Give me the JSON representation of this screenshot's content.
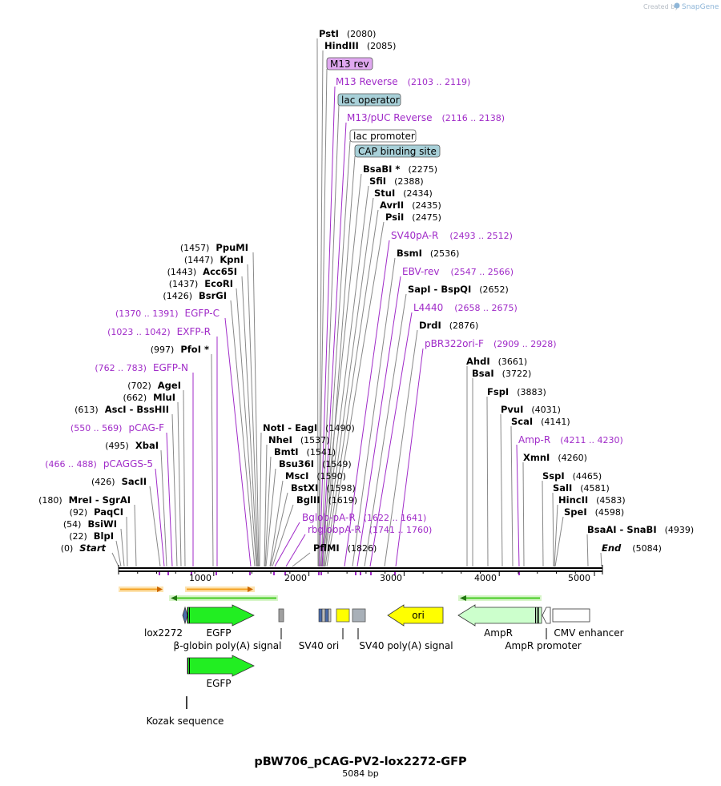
{
  "credit": {
    "prefix": "Created by",
    "brand": "SnapGene"
  },
  "title": "pBW706_pCAG-PV2-lox2272-GFP",
  "subtitle": "5084 bp",
  "total_bp": 5084,
  "ruler": {
    "ticks": [
      "1000",
      "2000",
      "3000",
      "4000",
      "5000"
    ]
  },
  "sites_top": [
    {
      "name": "PstI",
      "pos": "(2080)"
    },
    {
      "name": "HindIII",
      "pos": "(2085)"
    },
    {
      "name": "BsaBI *",
      "pos": "(2275)"
    },
    {
      "name": "SfiI",
      "pos": "(2388)"
    },
    {
      "name": "StuI",
      "pos": "(2434)"
    },
    {
      "name": "AvrII",
      "pos": "(2435)"
    },
    {
      "name": "PsiI",
      "pos": "(2475)"
    },
    {
      "name": "BsmI",
      "pos": "(2536)"
    },
    {
      "name": "SapI  -  BspQI",
      "pos": "(2652)"
    },
    {
      "name": "DrdI",
      "pos": "(2876)"
    }
  ],
  "features_top": [
    {
      "name": "M13 rev",
      "type": "badge"
    },
    {
      "name": "lac operator",
      "type": "badge"
    },
    {
      "name": "lac promoter",
      "type": "badge"
    },
    {
      "name": "CAP binding site",
      "type": "badge"
    }
  ],
  "primers_top": [
    {
      "name": "M13 Reverse",
      "pos": "(2103 .. 2119)"
    },
    {
      "name": "M13/pUC Reverse",
      "pos": "(2116 .. 2138)"
    },
    {
      "name": "SV40pA-R",
      "pos": "(2493 .. 2512)"
    },
    {
      "name": "EBV-rev",
      "pos": "(2547 .. 2566)"
    },
    {
      "name": "L4440",
      "pos": "(2658 .. 2675)"
    },
    {
      "name": "pBR322ori-F",
      "pos": "(2909 .. 2928)"
    }
  ],
  "sites_left": [
    {
      "name": "PpuMI",
      "pos": "(1457)"
    },
    {
      "name": "KpnI",
      "pos": "(1447)"
    },
    {
      "name": "Acc65I",
      "pos": "(1443)"
    },
    {
      "name": "EcoRI",
      "pos": "(1437)"
    },
    {
      "name": "BsrGI",
      "pos": "(1426)"
    },
    {
      "name": "PfoI *",
      "pos": "(997)"
    },
    {
      "name": "AgeI",
      "pos": "(702)"
    },
    {
      "name": "MluI",
      "pos": "(662)"
    },
    {
      "name": "AscI  -  BssHII",
      "pos": "(613)"
    },
    {
      "name": "XbaI",
      "pos": "(495)"
    },
    {
      "name": "SacII",
      "pos": "(426)"
    },
    {
      "name": "MreI  -  SgrAI",
      "pos": "(180)"
    },
    {
      "name": "PaqCI",
      "pos": "(92)"
    },
    {
      "name": "BsiWI",
      "pos": "(54)"
    },
    {
      "name": "BlpI",
      "pos": "(22)"
    },
    {
      "name": "Start",
      "pos": "(0)"
    }
  ],
  "primers_left": [
    {
      "name": "EGFP-C",
      "pos": "(1370 .. 1391)"
    },
    {
      "name": "EXFP-R",
      "pos": "(1023 .. 1042)"
    },
    {
      "name": "EGFP-N",
      "pos": "(762 .. 783)"
    },
    {
      "name": "pCAG-F",
      "pos": "(550 .. 569)"
    },
    {
      "name": "pCAGGS-5",
      "pos": "(466 .. 488)"
    }
  ],
  "sites_mid": [
    {
      "name": "NotI  -  EagI",
      "pos": "(1490)"
    },
    {
      "name": "NheI",
      "pos": "(1537)"
    },
    {
      "name": "BmtI",
      "pos": "(1541)"
    },
    {
      "name": "Bsu36I",
      "pos": "(1549)"
    },
    {
      "name": "MscI",
      "pos": "(1590)"
    },
    {
      "name": "BstXI",
      "pos": "(1598)"
    },
    {
      "name": "BglII",
      "pos": "(1619)"
    },
    {
      "name": "PflMI",
      "pos": "(1826)"
    }
  ],
  "primers_mid": [
    {
      "name": "Bglob-pA-R",
      "pos": "(1622 .. 1641)"
    },
    {
      "name": "rbglobpA-R",
      "pos": "(1741 .. 1760)"
    }
  ],
  "sites_right": [
    {
      "name": "AhdI",
      "pos": "(3661)"
    },
    {
      "name": "BsaI",
      "pos": "(3722)"
    },
    {
      "name": "FspI",
      "pos": "(3883)"
    },
    {
      "name": "PvuI",
      "pos": "(4031)"
    },
    {
      "name": "ScaI",
      "pos": "(4141)"
    },
    {
      "name": "XmnI",
      "pos": "(4260)"
    },
    {
      "name": "SspI",
      "pos": "(4465)"
    },
    {
      "name": "SalI",
      "pos": "(4581)"
    },
    {
      "name": "HincII",
      "pos": "(4583)"
    },
    {
      "name": "SpeI",
      "pos": "(4598)"
    },
    {
      "name": "BsaAI  -  SnaBI",
      "pos": "(4939)"
    },
    {
      "name": "End",
      "pos": "(5084)"
    }
  ],
  "primers_right": [
    {
      "name": "Amp-R",
      "pos": "(4211 .. 4230)"
    }
  ],
  "features": [
    {
      "name": "lox2272"
    },
    {
      "name": "EGFP"
    },
    {
      "name": "β-globin poly(A) signal"
    },
    {
      "name": "SV40 ori"
    },
    {
      "name": "SV40 poly(A) signal"
    },
    {
      "name": "ori"
    },
    {
      "name": "AmpR"
    },
    {
      "name": "AmpR promoter"
    },
    {
      "name": "CMV enhancer"
    },
    {
      "name": "EGFP"
    },
    {
      "name": "Kozak sequence"
    }
  ],
  "colors": {
    "primer": "#a02bc8",
    "egfp": "#22ee22",
    "ori": "#ffff00",
    "ampr": "#ccffcc",
    "badge_purple": "#e0a8f0",
    "badge_teal": "#a8d0d8",
    "orf_orange": "#f5a020",
    "orf_green": "#44cc22"
  }
}
